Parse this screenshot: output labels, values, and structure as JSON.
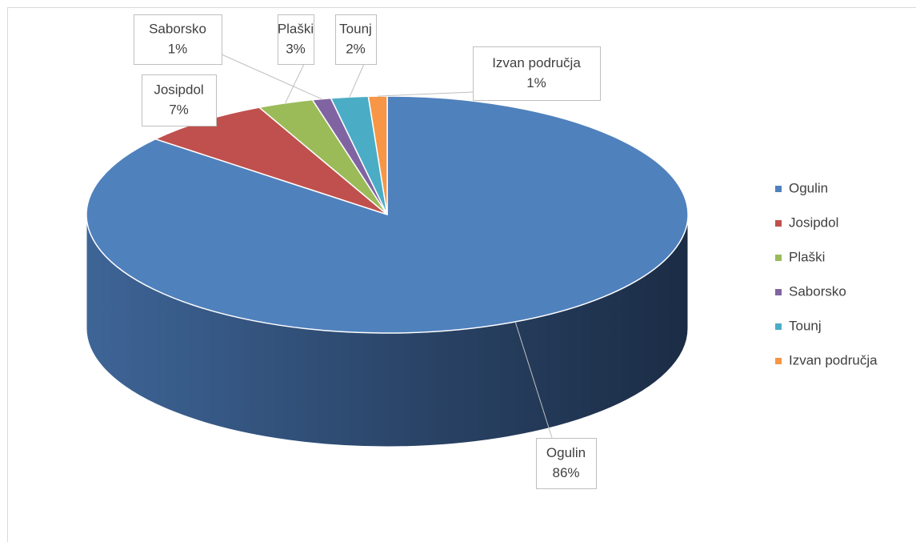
{
  "chart_data": {
    "type": "pie",
    "categories": [
      "Ogulin",
      "Josipdol",
      "Plaški",
      "Saborsko",
      "Tounj",
      "Izvan područja"
    ],
    "values": [
      86,
      7,
      3,
      1,
      2,
      1
    ],
    "value_labels": [
      "86%",
      "7%",
      "3%",
      "1%",
      "2%",
      "1%"
    ],
    "colors": [
      "#4f81bd",
      "#c0504d",
      "#9bbb59",
      "#8064a2",
      "#4bacc6",
      "#f79646"
    ],
    "legend": "right"
  }
}
